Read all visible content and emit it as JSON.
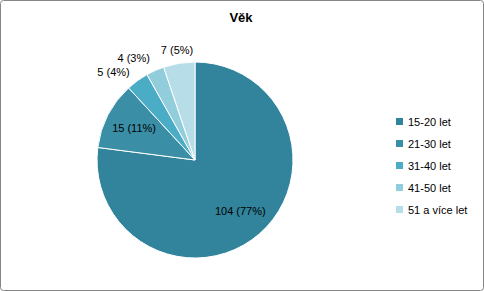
{
  "chart_data": {
    "type": "pie",
    "title": "Věk",
    "categories": [
      "15-20 let",
      "21-30 let",
      "31-40 let",
      "41-50 let",
      "51 a více let"
    ],
    "values": [
      104,
      15,
      5,
      4,
      7
    ],
    "value_labels": [
      "104 (77%)",
      "15 (11%)",
      "5 (4%)",
      "4 (3%)",
      "7 (5%)"
    ],
    "colors": [
      "#31849b",
      "#3a8ea6",
      "#4bacc6",
      "#92cddc",
      "#b7dee8"
    ],
    "data_labels": true,
    "legend": "right"
  }
}
